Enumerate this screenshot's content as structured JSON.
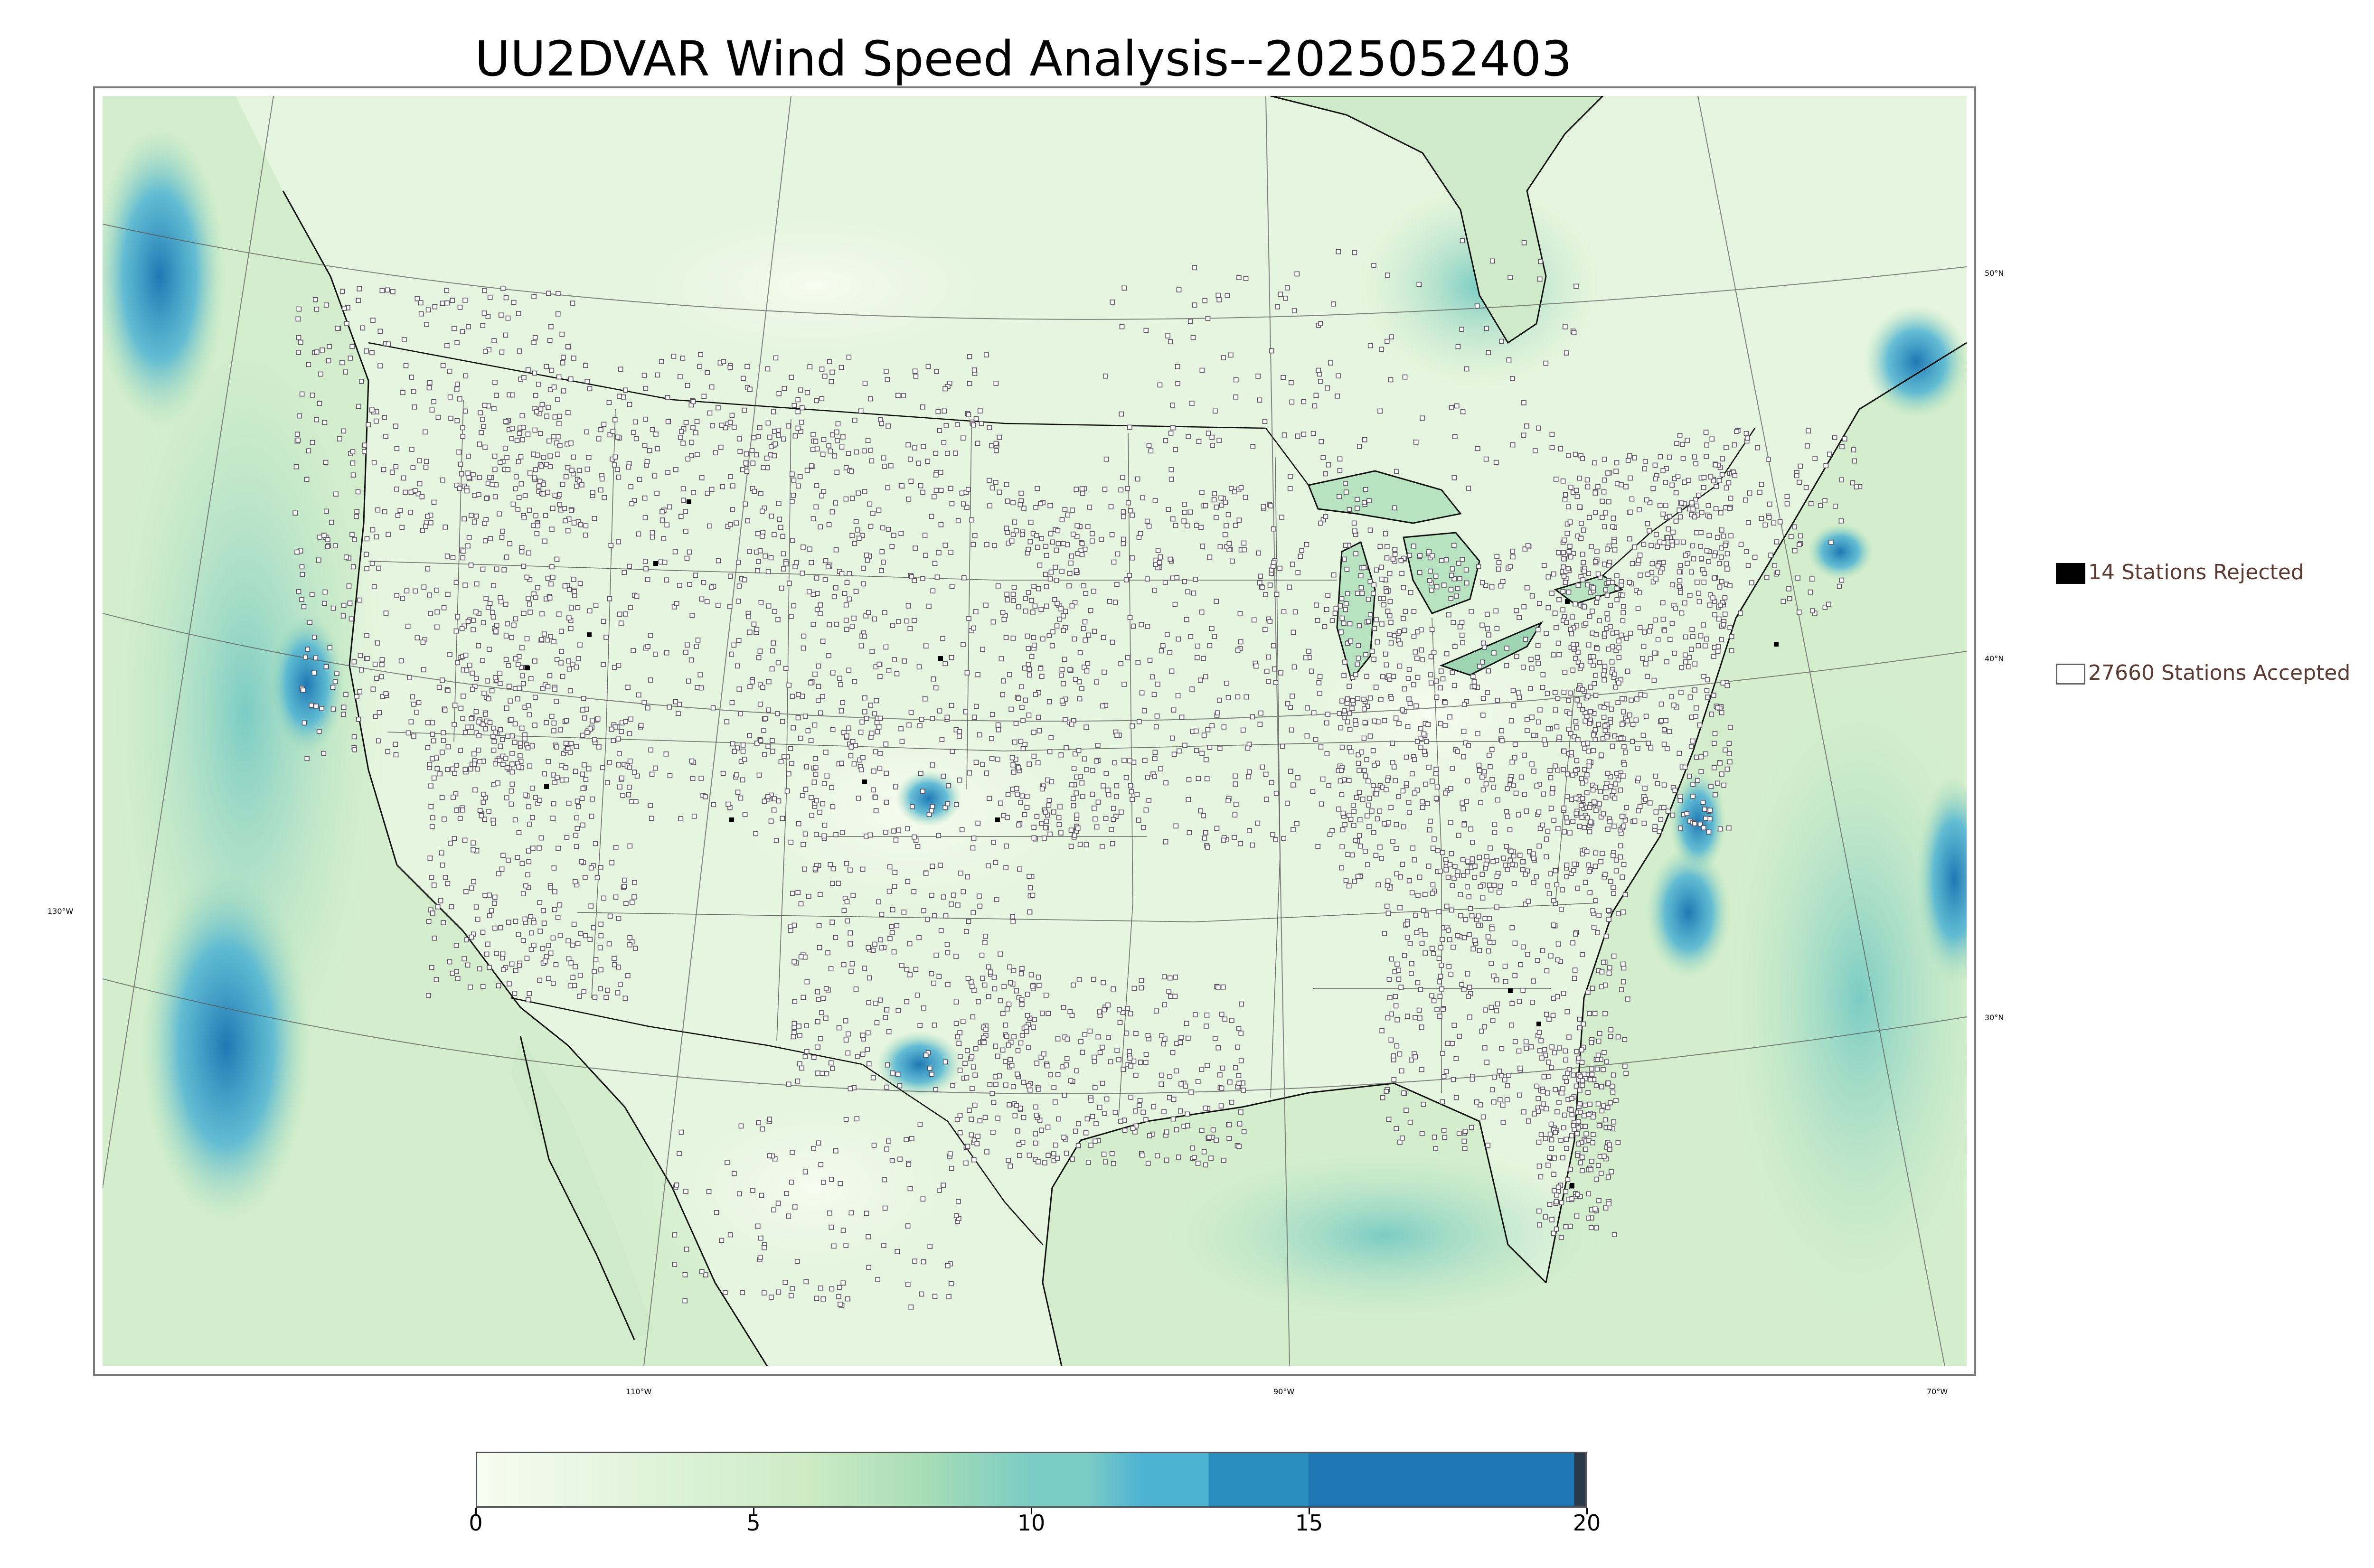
{
  "title": "UU2DVAR Wind Speed Analysis--2025052403",
  "map": {
    "latitude_labels": [
      "50°N",
      "40°N",
      "30°N"
    ],
    "longitude_labels": [
      "130°W",
      "110°W",
      "90°W",
      "70°W"
    ]
  },
  "legend": {
    "rejected": {
      "label": "14 Stations Rejected",
      "count": 14,
      "color": "#000000"
    },
    "accepted": {
      "label": "27660 Stations Accepted",
      "count": 27660,
      "color": "#ffffff"
    }
  },
  "colorbar": {
    "min": 0,
    "max": 20,
    "ticks": [
      "0",
      "5",
      "10",
      "15",
      "20"
    ],
    "colors": [
      "#f7fcf0",
      "#ccebc5",
      "#a8ddb5",
      "#7bccc4",
      "#4eb3d3",
      "#2b8cbe",
      "#1f78b4"
    ]
  },
  "colors": {
    "ocean_calm": "#d9f0d3",
    "land": "#e8f6e0",
    "high_wind": "#2b8cbe",
    "station_accepted": "#ffffff",
    "station_rejected": "#000000",
    "coastline": "#111111",
    "gridline": "#555555"
  }
}
